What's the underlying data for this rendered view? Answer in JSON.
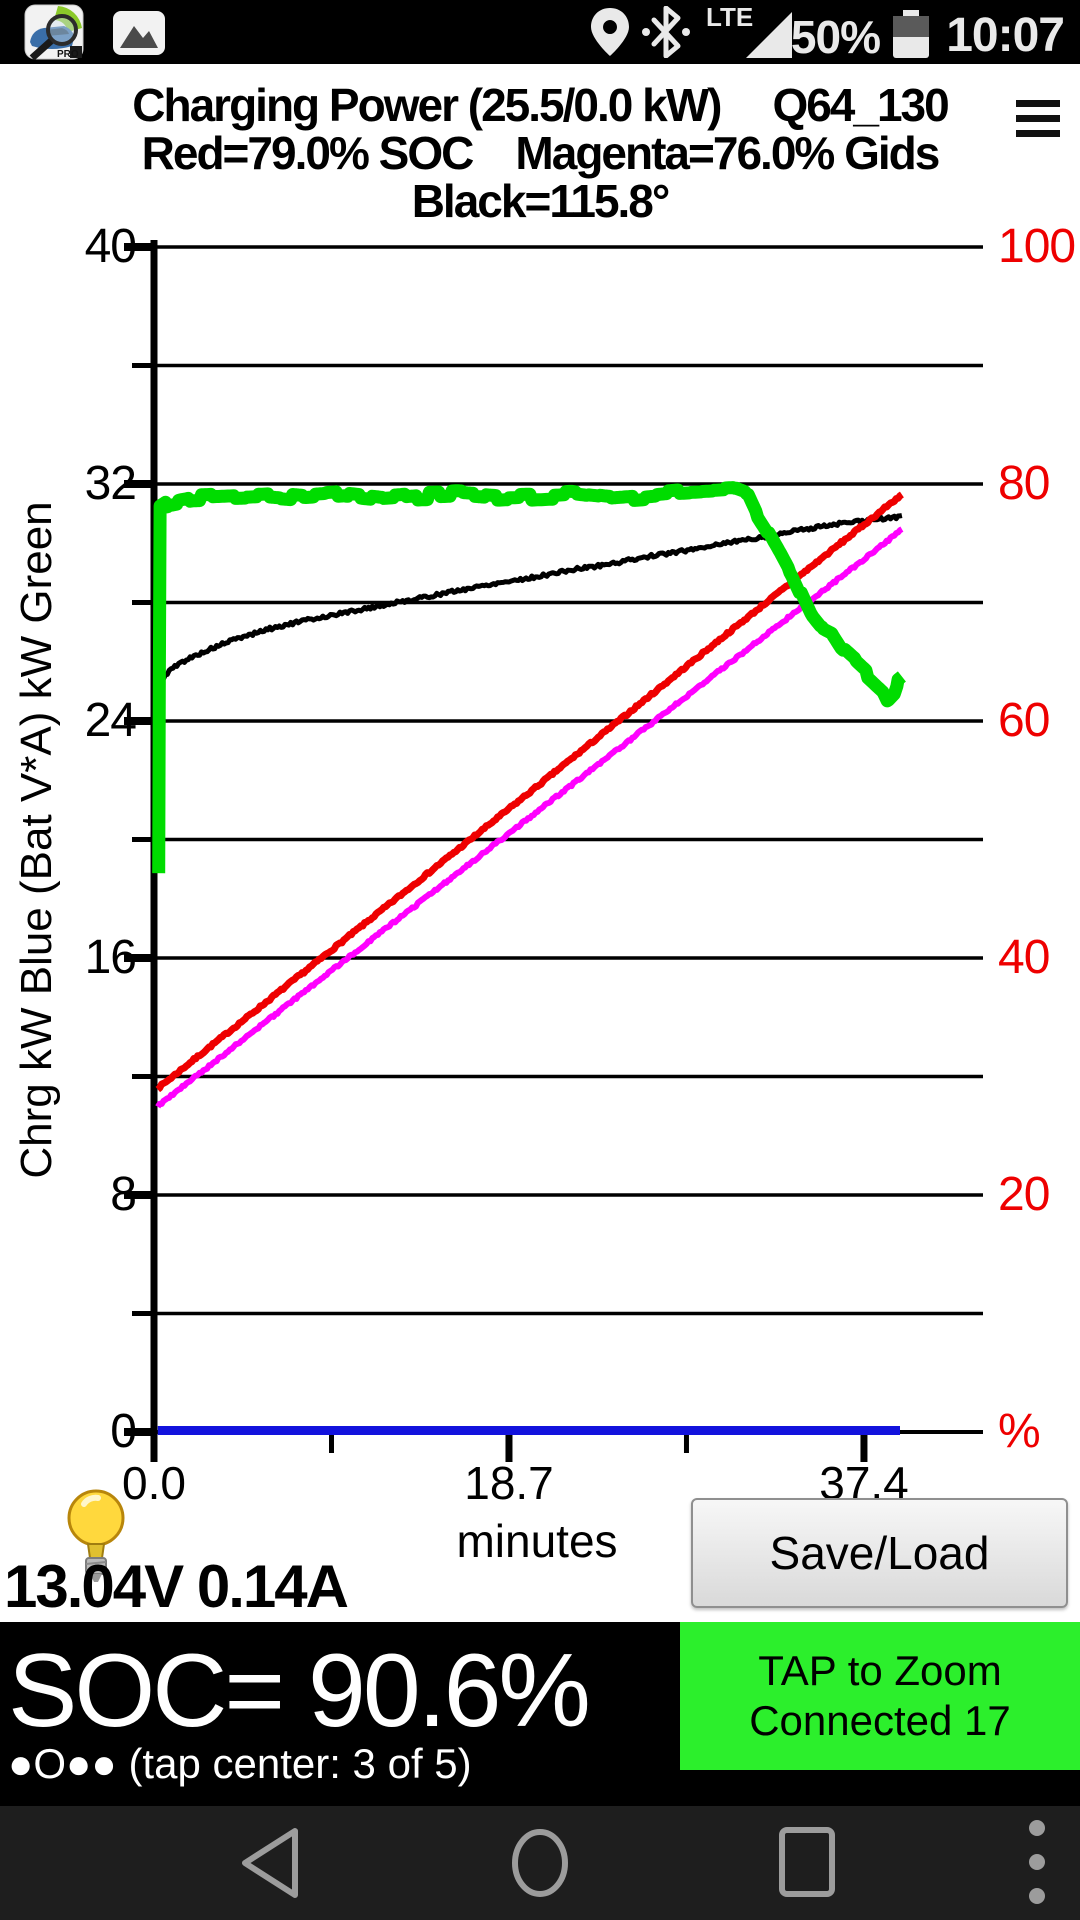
{
  "status_bar": {
    "time": "10:07",
    "battery": "50%",
    "network_label": "LTE"
  },
  "title": {
    "main": "Charging Power (25.5/0.0 kW)",
    "session": "Q64_130",
    "legend1": "Red=79.0% SOC    Magenta=76.0% Gids",
    "legend2": "Black=115.8°"
  },
  "chart_data": {
    "type": "line",
    "title": "Charging Power (25.5/0.0 kW) Q64_130",
    "x": {
      "label": "minutes",
      "tick_labels": [
        "0.0",
        "18.7",
        "37.4"
      ],
      "tick_values": [
        0,
        18.7,
        37.4
      ],
      "minor_tick_values": [
        9.35,
        28.05
      ],
      "range": [
        0,
        43.7
      ]
    },
    "y_left": {
      "label": "Chrg kW Blue  (Bat V*A) kW Green",
      "tick_labels": [
        "40",
        "32",
        "24",
        "16",
        "8",
        "0"
      ],
      "tick_values": [
        40,
        32,
        24,
        16,
        8,
        0
      ],
      "gridline_step": 4,
      "range": [
        0,
        40
      ]
    },
    "y_right": {
      "tick_labels": [
        "100",
        "80",
        "60",
        "40",
        "20",
        "%"
      ],
      "tick_values": [
        100,
        80,
        60,
        40,
        20,
        0
      ],
      "range": [
        0,
        100
      ],
      "color": "#ee0000"
    },
    "grid": true,
    "series": [
      {
        "name": "temperature-black",
        "color": "#000000",
        "points": [
          [
            0.3,
            25.3
          ],
          [
            0.8,
            25.7
          ],
          [
            1.5,
            26.0
          ],
          [
            2.5,
            26.3
          ],
          [
            4,
            26.7
          ],
          [
            6,
            27.1
          ],
          [
            8,
            27.4
          ],
          [
            10,
            27.65
          ],
          [
            12,
            27.9
          ],
          [
            14,
            28.15
          ],
          [
            16,
            28.4
          ],
          [
            18,
            28.65
          ],
          [
            20,
            28.85
          ],
          [
            22,
            29.1
          ],
          [
            24,
            29.3
          ],
          [
            26,
            29.55
          ],
          [
            28,
            29.75
          ],
          [
            30,
            30.0
          ],
          [
            32,
            30.2
          ],
          [
            34,
            30.45
          ],
          [
            36,
            30.65
          ],
          [
            38,
            30.8
          ],
          [
            39.4,
            30.9
          ]
        ]
      },
      {
        "name": "soc-red",
        "color": "#ee0000",
        "points": [
          [
            0.2,
            11.6
          ],
          [
            10,
            16.6
          ],
          [
            20,
            21.7
          ],
          [
            30,
            26.85
          ],
          [
            39.4,
            31.65
          ]
        ]
      },
      {
        "name": "gids-magenta",
        "color": "#ff00ff",
        "points": [
          [
            0.2,
            11.0
          ],
          [
            10,
            15.9
          ],
          [
            20,
            20.85
          ],
          [
            30,
            25.8
          ],
          [
            39.4,
            30.45
          ]
        ]
      },
      {
        "name": "charging-power-green",
        "color": "#00dc00",
        "points": [
          [
            0.25,
            18.8
          ],
          [
            0.28,
            25.0
          ],
          [
            0.32,
            31.2
          ],
          [
            0.8,
            31.4
          ],
          [
            2,
            31.55
          ],
          [
            4,
            31.6
          ],
          [
            6,
            31.65
          ],
          [
            8,
            31.55
          ],
          [
            10,
            31.65
          ],
          [
            12,
            31.5
          ],
          [
            14,
            31.6
          ],
          [
            16,
            31.65
          ],
          [
            18,
            31.55
          ],
          [
            20,
            31.6
          ],
          [
            22,
            31.65
          ],
          [
            24,
            31.5
          ],
          [
            26,
            31.6
          ],
          [
            27.5,
            31.7
          ],
          [
            29,
            31.75
          ],
          [
            30.5,
            31.8
          ],
          [
            31.3,
            31.6
          ],
          [
            31.8,
            30.9
          ],
          [
            32.4,
            30.3
          ],
          [
            33.1,
            29.5
          ],
          [
            33.6,
            28.9
          ],
          [
            34.1,
            28.2
          ],
          [
            34.6,
            27.5
          ],
          [
            35.1,
            27.1
          ],
          [
            35.7,
            26.9
          ],
          [
            36.2,
            26.4
          ],
          [
            36.9,
            26.0
          ],
          [
            37.4,
            25.7
          ],
          [
            37.9,
            25.4
          ],
          [
            38.4,
            25.1
          ],
          [
            38.7,
            24.7
          ],
          [
            39.0,
            24.9
          ],
          [
            39.2,
            25.3
          ],
          [
            39.4,
            25.4
          ]
        ]
      },
      {
        "name": "aux-power-blue",
        "color": "#1212dd",
        "points": [
          [
            0.2,
            0.05
          ],
          [
            39.3,
            0.05
          ]
        ]
      }
    ]
  },
  "footer": {
    "voltage_current": "13.04V 0.14A",
    "save_load_label": "Save/Load"
  },
  "soc_bar": {
    "soc_text": "SOC= 90.6%",
    "pager_text": "●O●● (tap center: 3 of 5)",
    "zoom_line1": "TAP to Zoom",
    "zoom_line2": "Connected 17"
  }
}
